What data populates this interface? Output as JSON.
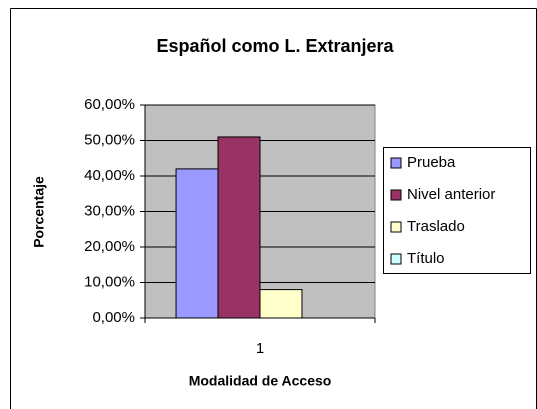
{
  "chart_data": {
    "type": "bar",
    "title": "Español como L. Extranjera",
    "x_label": "Modalidad de Acceso",
    "y_label": "Porcentaje",
    "categories": [
      "1"
    ],
    "series": [
      {
        "name": "Prueba",
        "color": "#9999ff",
        "values": [
          42
        ]
      },
      {
        "name": "Nivel anterior",
        "color": "#993366",
        "values": [
          51
        ]
      },
      {
        "name": "Traslado",
        "color": "#ffffcc",
        "values": [
          8
        ]
      },
      {
        "name": "Título",
        "color": "#ccffff",
        "values": [
          0
        ]
      }
    ],
    "ylim": [
      0,
      60
    ],
    "yticks": [
      {
        "value": 0,
        "label": "0,00%"
      },
      {
        "value": 10,
        "label": "10,00%"
      },
      {
        "value": 20,
        "label": "20,00%"
      },
      {
        "value": 30,
        "label": "30,00%"
      },
      {
        "value": 40,
        "label": "40,00%"
      },
      {
        "value": 50,
        "label": "50,00%"
      },
      {
        "value": 60,
        "label": "60,00%"
      }
    ],
    "grid": true,
    "legend": "right"
  }
}
